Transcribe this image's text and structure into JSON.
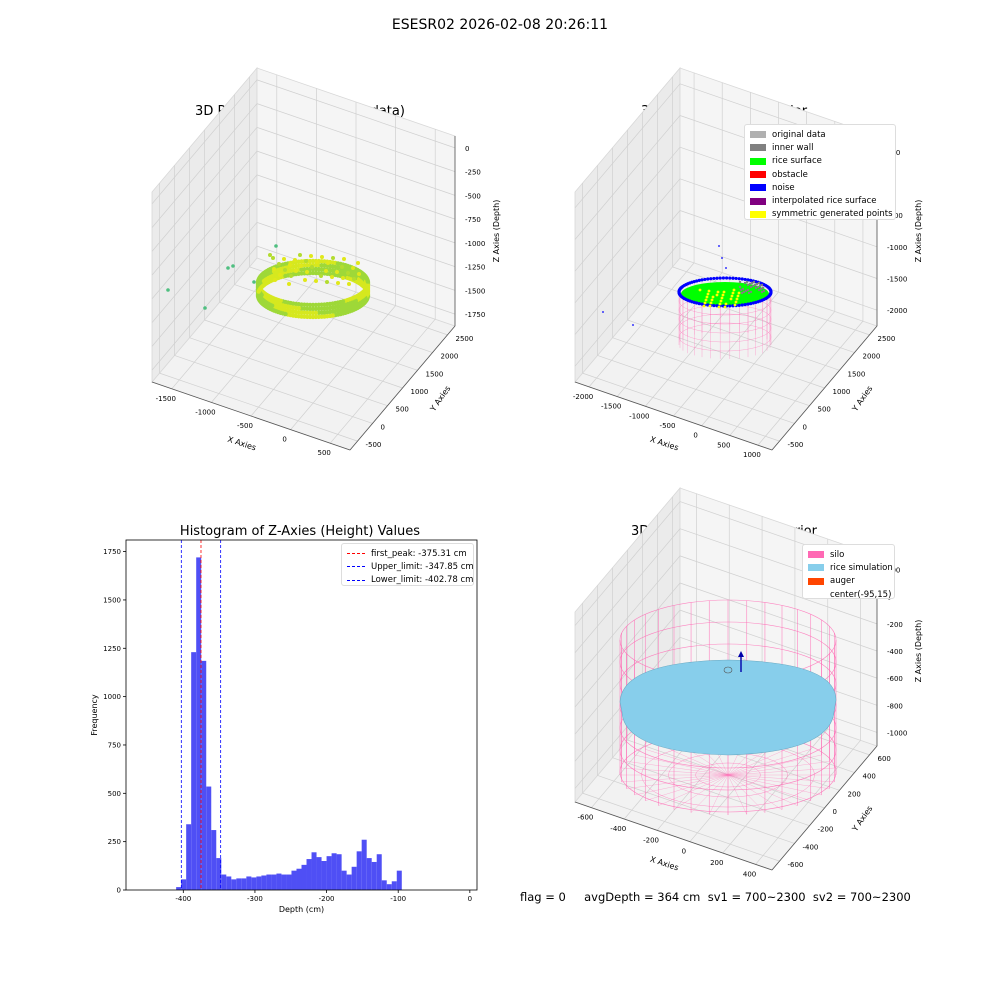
{
  "figure": {
    "title": "ESESR02 2026-02-08 20:26:11",
    "footer": "flag = 0     avgDepth = 364 cm  sv1 = 700~2300  sv2 = 700~2300"
  },
  "colors": {
    "original_data": "#b0b0b0",
    "inner_wall": "#808080",
    "rice_surface": "#00ff00",
    "obstacle": "#ff0000",
    "noise": "#0000ff",
    "interpolated": "#800080",
    "symmetric": "#ffff00",
    "silo": "#ff69b4",
    "rice_sim": "#87ceeb",
    "auger": "#ff4500",
    "hist_bar": "#4f4ff5"
  },
  "chart_data": [
    {
      "type": "scatter",
      "projection": "3d",
      "title": "3D Plot of Silo Interior(row data)",
      "xlabel": "X Axies",
      "ylabel": "Y Axies",
      "zlabel": "Z Axies (Depth)",
      "x_ticks": [
        "-1500",
        "-1000",
        "-500",
        "0",
        "500"
      ],
      "y_ticks": [
        "-500",
        "0",
        "500",
        "1000",
        "1500",
        "2000",
        "2500"
      ],
      "z_ticks": [
        "0",
        "-250",
        "-500",
        "-750",
        "-1000",
        "-1250",
        "-1500",
        "-1750"
      ],
      "colormap": "viridis-like (yellow-green)"
    },
    {
      "type": "scatter",
      "projection": "3d",
      "title": "3D classify of Silo Interior",
      "xlabel": "X Axies",
      "ylabel": "Y Axies",
      "zlabel": "Z Axies (Depth)",
      "x_ticks": [
        "-2000",
        "-1500",
        "-1000",
        "-500",
        "0",
        "500",
        "1000"
      ],
      "y_ticks": [
        "-500",
        "0",
        "500",
        "1000",
        "1500",
        "2000",
        "2500"
      ],
      "z_ticks": [
        "500",
        "0",
        "-500",
        "-1000",
        "-1500",
        "-2000"
      ],
      "legend": [
        "original data",
        "inner wall",
        "rice surface",
        "obstacle",
        "noise",
        "interpolated rice surface",
        "symmetric generated points"
      ],
      "legend_position": "top-right"
    },
    {
      "type": "bar",
      "title": "Histogram of Z-Axies (Height) Values",
      "xlabel": "Depth (cm)",
      "ylabel": "Frequency",
      "xlim": [
        -480,
        10
      ],
      "ylim": [
        0,
        1810
      ],
      "x_ticks": [
        -400,
        -300,
        -200,
        -100,
        0
      ],
      "y_ticks": [
        0,
        250,
        500,
        750,
        1000,
        1250,
        1500,
        1750
      ],
      "bin_width": 7,
      "bin_start": -410,
      "values": [
        15,
        55,
        340,
        1230,
        1720,
        1185,
        535,
        310,
        165,
        80,
        70,
        55,
        60,
        60,
        70,
        65,
        70,
        75,
        80,
        80,
        85,
        80,
        80,
        100,
        110,
        130,
        160,
        195,
        170,
        150,
        175,
        190,
        185,
        100,
        80,
        120,
        200,
        260,
        165,
        145,
        185,
        50,
        30,
        45,
        100
      ],
      "vlines": [
        {
          "label": "first_peak: -375.31 cm",
          "x": -375.31,
          "color": "#ff0000"
        },
        {
          "label": "Upper_limit: -347.85 cm",
          "x": -347.85,
          "color": "#0000ff"
        },
        {
          "label": "Lower_limit: -402.78 cm",
          "x": -402.78,
          "color": "#0000ff"
        }
      ],
      "legend_position": "top-right"
    },
    {
      "type": "surface",
      "projection": "3d",
      "title": "3D simulation of Silo Interior",
      "xlabel": "X Axies",
      "ylabel": "Y Axies",
      "zlabel": "Z Axies (Depth)",
      "x_ticks": [
        "-600",
        "-400",
        "-200",
        "0",
        "200",
        "400"
      ],
      "y_ticks": [
        "-600",
        "-400",
        "-200",
        "0",
        "200",
        "400",
        "600"
      ],
      "z_ticks": [
        "200",
        "0",
        "-200",
        "-400",
        "-600",
        "-800",
        "-1000"
      ],
      "legend": [
        "silo",
        "rice simulation",
        "auger",
        "center(-95,15)"
      ],
      "legend_position": "top-right"
    }
  ]
}
